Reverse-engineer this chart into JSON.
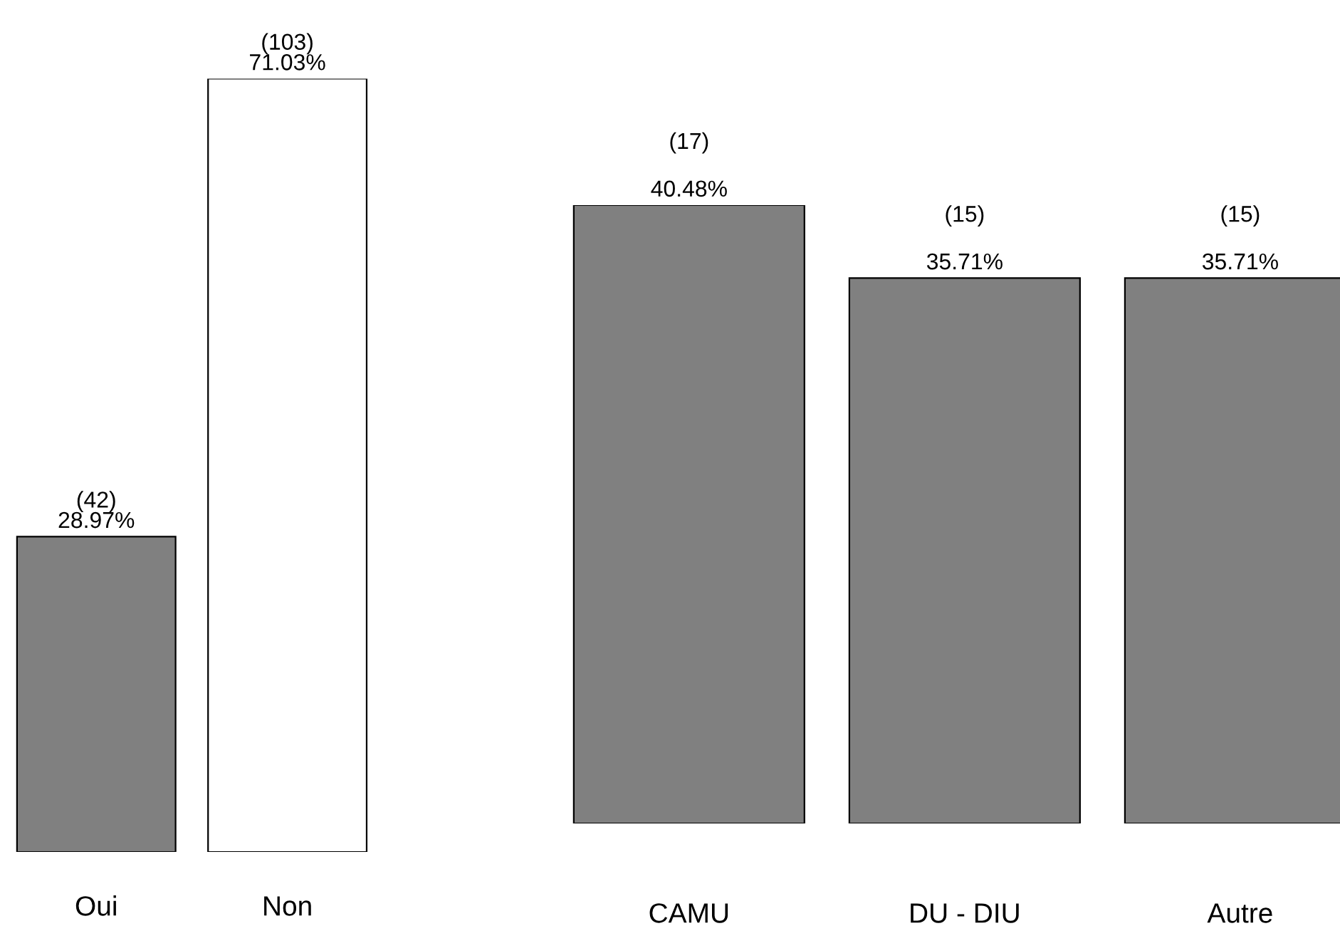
{
  "chart_data": [
    {
      "type": "bar",
      "categories": [
        "Oui",
        "Non"
      ],
      "values": [
        28.97,
        71.03
      ],
      "colors": [
        "#808080",
        "#ffffff"
      ],
      "value_labels": [
        "(42)\n28.97%",
        "(103)\n71.03%"
      ]
    },
    {
      "type": "bar",
      "categories": [
        "CAMU",
        "DU - DIU",
        "Autre"
      ],
      "values": [
        40.48,
        35.71,
        35.71
      ],
      "colors": [
        "#808080",
        "#808080",
        "#808080"
      ],
      "value_labels": [
        "(17)\n40.48%",
        "(15)\n35.71%",
        "(15)\n35.71%"
      ]
    }
  ]
}
